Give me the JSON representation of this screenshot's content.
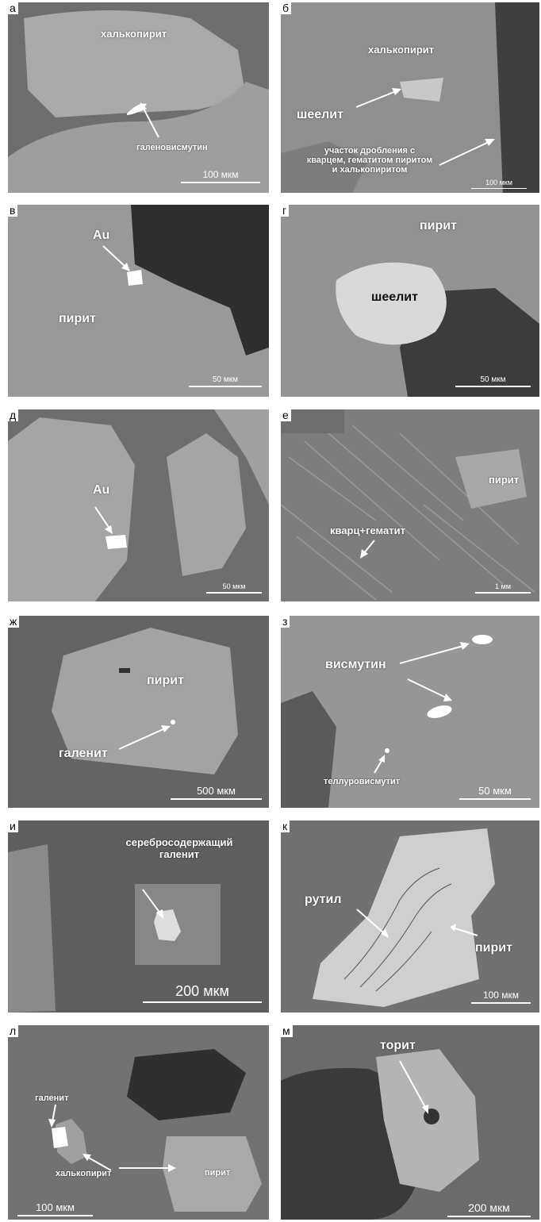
{
  "panels": [
    {
      "letter": "а",
      "labels": [
        "халькопирит",
        "галеновисмутин"
      ],
      "scale": "100 мкм"
    },
    {
      "letter": "б",
      "labels": [
        "халькопирит",
        "шеелит",
        "участок дробления с кварцем, гематитом пиритом и халькопиритом"
      ],
      "scale": "100 мкм"
    },
    {
      "letter": "в",
      "labels": [
        "Au",
        "пирит"
      ],
      "scale": "50 мкм"
    },
    {
      "letter": "г",
      "labels": [
        "пирит",
        "шеелит"
      ],
      "scale": "50 мкм"
    },
    {
      "letter": "д",
      "labels": [
        "Au"
      ],
      "scale": "50 мкм"
    },
    {
      "letter": "е",
      "labels": [
        "пирит",
        "кварц+гематит"
      ],
      "scale": "1 мм"
    },
    {
      "letter": "ж",
      "labels": [
        "пирит",
        "галенит"
      ],
      "scale": "500 мкм"
    },
    {
      "letter": "з",
      "labels": [
        "висмутин",
        "теллуровисмутит"
      ],
      "scale": "50 мкм"
    },
    {
      "letter": "и",
      "labels": [
        "серебросодержащий галенит"
      ],
      "scale": "200 мкм"
    },
    {
      "letter": "к",
      "labels": [
        "рутил",
        "пирит"
      ],
      "scale": "100 мкм"
    },
    {
      "letter": "л",
      "labels": [
        "галенит",
        "халькопирит",
        "пирит"
      ],
      "scale": "100 мкм"
    },
    {
      "letter": "м",
      "labels": [
        "торит"
      ],
      "scale": "200 мкм"
    }
  ]
}
